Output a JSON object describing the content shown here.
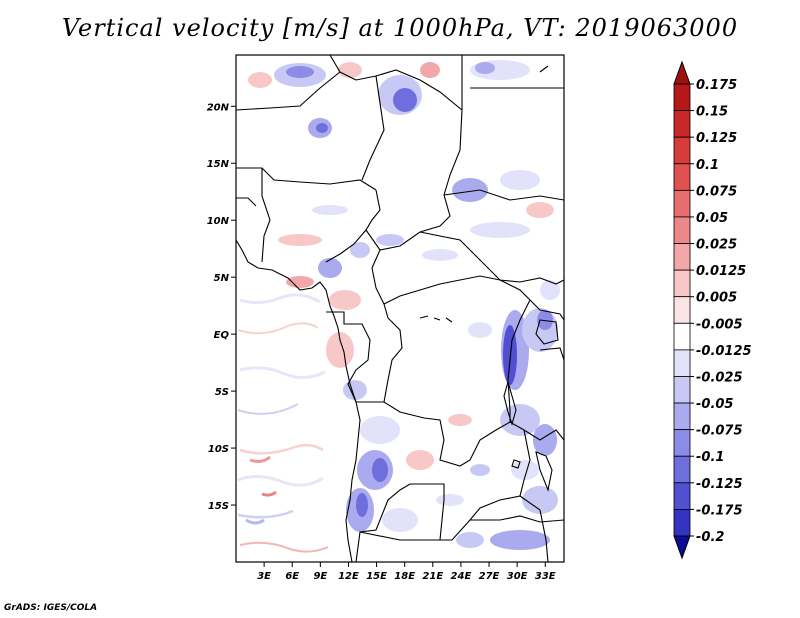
{
  "title": "Vertical velocity [m/s] at 1000hPa, VT: 2019063000",
  "credit": "GrADS: IGES/COLA",
  "map": {
    "lon_range": [
      0,
      35
    ],
    "lat_range": [
      -20,
      24.5
    ],
    "lon_ticks": [
      {
        "value": 3,
        "label": "3E"
      },
      {
        "value": 6,
        "label": "6E"
      },
      {
        "value": 9,
        "label": "9E"
      },
      {
        "value": 12,
        "label": "12E"
      },
      {
        "value": 15,
        "label": "15E"
      },
      {
        "value": 18,
        "label": "18E"
      },
      {
        "value": 21,
        "label": "21E"
      },
      {
        "value": 24,
        "label": "24E"
      },
      {
        "value": 27,
        "label": "27E"
      },
      {
        "value": 30,
        "label": "30E"
      },
      {
        "value": 33,
        "label": "33E"
      }
    ],
    "lat_ticks": [
      {
        "value": 20,
        "label": "20N"
      },
      {
        "value": 15,
        "label": "15N"
      },
      {
        "value": 10,
        "label": "10N"
      },
      {
        "value": 5,
        "label": "5N"
      },
      {
        "value": 0,
        "label": "EQ"
      },
      {
        "value": -5,
        "label": "5S"
      },
      {
        "value": -10,
        "label": "10S"
      },
      {
        "value": -15,
        "label": "15S"
      }
    ]
  },
  "colorbar": {
    "levels": [
      {
        "label": "0.175",
        "color": "#b41818"
      },
      {
        "label": "0.15",
        "color": "#c82828"
      },
      {
        "label": "0.125",
        "color": "#d63c3c"
      },
      {
        "label": "0.1",
        "color": "#e05252"
      },
      {
        "label": "0.075",
        "color": "#e66e6e"
      },
      {
        "label": "0.05",
        "color": "#ec8888"
      },
      {
        "label": "0.025",
        "color": "#f2a8a8"
      },
      {
        "label": "0.0125",
        "color": "#f8c8c8"
      },
      {
        "label": "0.005",
        "color": "#fce4e4"
      },
      {
        "label": "-0.005",
        "color": "#ffffff"
      },
      {
        "label": "-0.0125",
        "color": "#e2e2fa"
      },
      {
        "label": "-0.025",
        "color": "#c8c8f4"
      },
      {
        "label": "-0.05",
        "color": "#aaaaee"
      },
      {
        "label": "-0.075",
        "color": "#8c8ce6"
      },
      {
        "label": "-0.1",
        "color": "#6e6edc"
      },
      {
        "label": "-0.125",
        "color": "#5050d0"
      },
      {
        "label": "-0.175",
        "color": "#3434c2"
      },
      {
        "label": "-0.2",
        "color": "#1c1cb0"
      }
    ],
    "top_color": "#a01010",
    "bottom_color": "#0c0c96"
  }
}
